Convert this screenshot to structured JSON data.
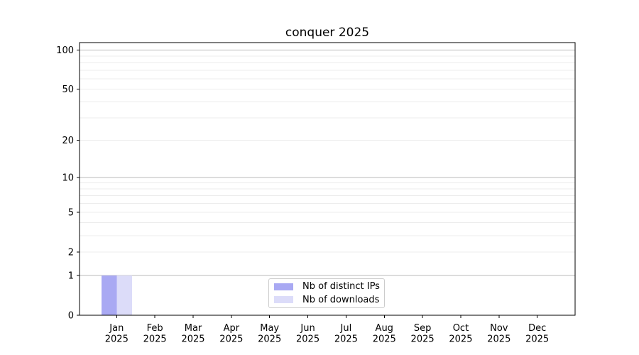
{
  "chart_data": {
    "type": "bar",
    "title": "conquer 2025",
    "categories": [
      "Jan 2025",
      "Feb 2025",
      "Mar 2025",
      "Apr 2025",
      "May 2025",
      "Jun 2025",
      "Jul 2025",
      "Aug 2025",
      "Sep 2025",
      "Oct 2025",
      "Nov 2025",
      "Dec 2025"
    ],
    "series": [
      {
        "name": "Nb of distinct IPs",
        "color": "#a9a9f3",
        "values": [
          1,
          0,
          0,
          0,
          0,
          0,
          0,
          0,
          0,
          0,
          0,
          0
        ]
      },
      {
        "name": "Nb of downloads",
        "color": "#dcdcf9",
        "values": [
          1,
          0,
          0,
          0,
          0,
          0,
          0,
          0,
          0,
          0,
          0,
          0
        ]
      }
    ],
    "xlabel": "",
    "ylabel": "",
    "y_axis": {
      "scale": "log1p",
      "ylim": [
        0,
        114
      ],
      "tick_values": [
        0,
        1,
        2,
        5,
        10,
        20,
        50,
        100
      ],
      "tick_labels": [
        "0",
        "1",
        "2",
        "5",
        "10",
        "20",
        "50",
        "100"
      ],
      "major_gridlines": [
        1,
        10,
        100
      ],
      "minor_gridlines": [
        2,
        3,
        4,
        5,
        6,
        7,
        8,
        9,
        20,
        30,
        40,
        50,
        60,
        70,
        80,
        90
      ]
    },
    "grid": true,
    "legend": {
      "position": "lower center",
      "entries": [
        "Nb of distinct IPs",
        "Nb of downloads"
      ]
    },
    "colors": {
      "background": "#ffffff",
      "axis": "#000000",
      "text": "#000000",
      "major_grid": "#bababa",
      "minor_grid": "#ececec"
    }
  }
}
